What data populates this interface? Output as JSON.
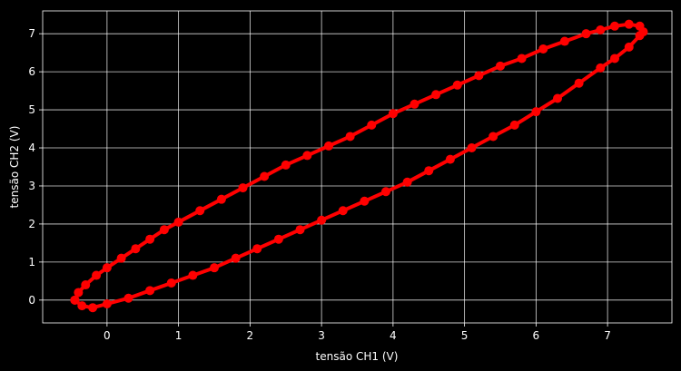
{
  "chart_data": {
    "type": "scatter",
    "title": "",
    "xlabel": "tensão CH1 (V)",
    "ylabel": "tensão CH2 (V)",
    "xlim": [
      -0.9,
      7.9
    ],
    "ylim": [
      -0.6,
      7.6
    ],
    "x_ticks": [
      0,
      1,
      2,
      3,
      4,
      5,
      6,
      7
    ],
    "y_ticks": [
      0,
      1,
      2,
      3,
      4,
      5,
      6,
      7
    ],
    "x_tick_labels": [
      "0",
      "1",
      "2",
      "3",
      "4",
      "5",
      "6",
      "7"
    ],
    "y_tick_labels": [
      "0",
      "1",
      "2",
      "3",
      "4",
      "5",
      "6",
      "7"
    ],
    "grid": true,
    "background": "#000000",
    "marker_color": "#ff0000",
    "line_color": "#ff0000",
    "series": [
      {
        "x": [
          -0.45,
          -0.4,
          -0.3,
          -0.15,
          0.0,
          0.2,
          0.4,
          0.6,
          0.8,
          1.0,
          1.3,
          1.6,
          1.9,
          2.2,
          2.5,
          2.8,
          3.1,
          3.4,
          3.7,
          4.0,
          4.3,
          4.6,
          4.9,
          5.2,
          5.5,
          5.8,
          6.1,
          6.4,
          6.7,
          6.9,
          7.1,
          7.3,
          7.45,
          7.5,
          7.45,
          7.3,
          7.1,
          6.9,
          6.6,
          6.3,
          6.0,
          5.7,
          5.4,
          5.1,
          4.8,
          4.5,
          4.2,
          3.9,
          3.6,
          3.3,
          3.0,
          2.7,
          2.4,
          2.1,
          1.8,
          1.5,
          1.2,
          0.9,
          0.6,
          0.3,
          0.0,
          -0.2,
          -0.35,
          -0.45
        ],
        "y": [
          0.0,
          0.2,
          0.4,
          0.65,
          0.85,
          1.1,
          1.35,
          1.6,
          1.85,
          2.05,
          2.35,
          2.65,
          2.95,
          3.25,
          3.55,
          3.8,
          4.05,
          4.3,
          4.6,
          4.9,
          5.15,
          5.4,
          5.65,
          5.9,
          6.15,
          6.35,
          6.6,
          6.8,
          7.0,
          7.1,
          7.2,
          7.25,
          7.2,
          7.05,
          6.95,
          6.65,
          6.35,
          6.1,
          5.7,
          5.3,
          4.95,
          4.6,
          4.3,
          4.0,
          3.7,
          3.4,
          3.1,
          2.85,
          2.6,
          2.35,
          2.1,
          1.85,
          1.6,
          1.35,
          1.1,
          0.85,
          0.65,
          0.45,
          0.25,
          0.05,
          -0.1,
          -0.2,
          -0.15,
          0.0
        ]
      }
    ]
  }
}
